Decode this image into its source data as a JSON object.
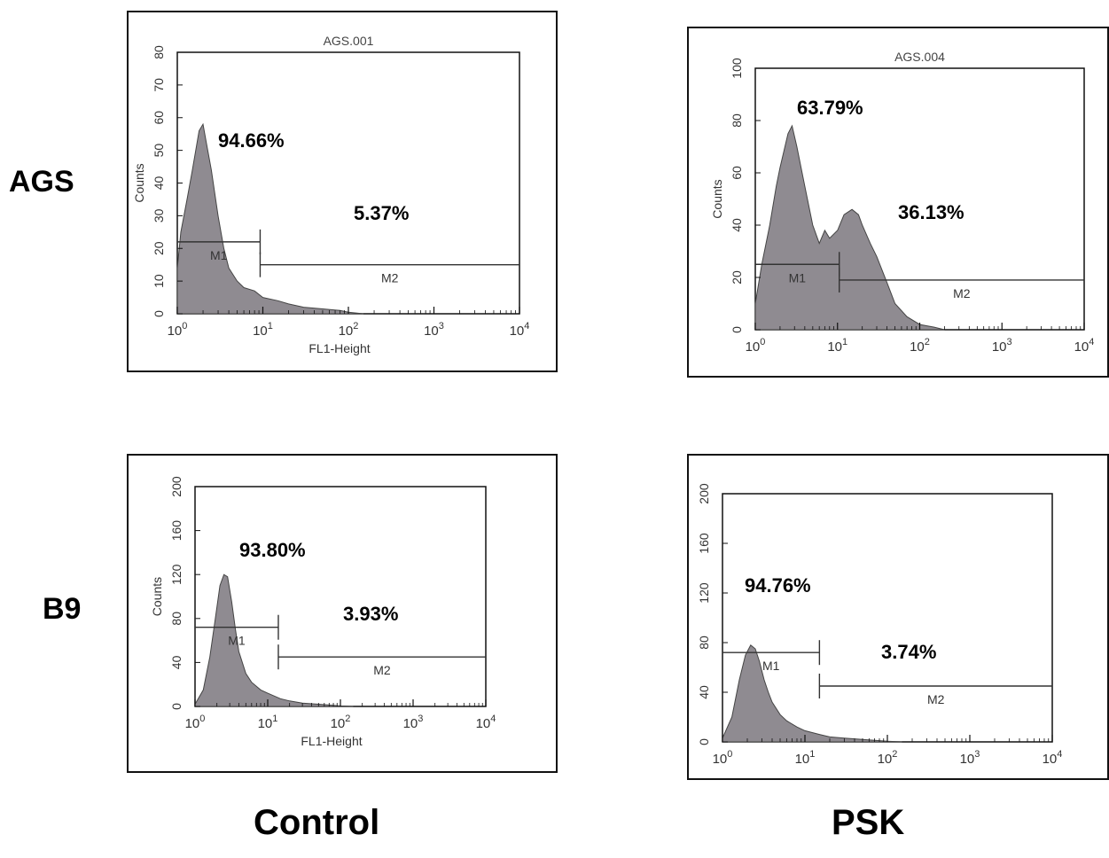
{
  "row_labels": [
    "AGS",
    "B9"
  ],
  "column_labels": [
    "Control",
    "PSK"
  ],
  "colors": {
    "fill": "#8f8b91",
    "line": "#444444",
    "frame": "#111111"
  },
  "chart_data": [
    {
      "type": "area",
      "row": "AGS",
      "column": "Control",
      "title": "AGS.001",
      "xlabel": "FL1-Height",
      "ylabel": "Counts",
      "x_scale": "log",
      "xlim": [
        1,
        10000
      ],
      "ylim": [
        0,
        80
      ],
      "x_ticks": [
        "10^0",
        "10^1",
        "10^2",
        "10^3",
        "10^4"
      ],
      "y_ticks": [
        "0",
        "10",
        "20",
        "30",
        "40",
        "50",
        "60",
        "70",
        "80"
      ],
      "x": [
        1,
        1.1,
        1.3,
        1.5,
        1.8,
        2,
        2.2,
        2.5,
        3,
        3.5,
        4,
        5,
        6,
        8,
        10,
        15,
        20,
        30,
        50,
        80,
        100,
        150
      ],
      "y": [
        14,
        25,
        35,
        44,
        56,
        58,
        52,
        44,
        30,
        20,
        14,
        10,
        8,
        7,
        5,
        4,
        3,
        2,
        1.5,
        1,
        0.5,
        0
      ],
      "markers": [
        {
          "name": "M1",
          "x_range": [
            1,
            9.3
          ],
          "level": 22
        },
        {
          "name": "M2",
          "x_range": [
            9.3,
            10000
          ],
          "level": 15
        }
      ],
      "annotations": [
        "94.66%",
        "5.37%"
      ]
    },
    {
      "type": "area",
      "row": "AGS",
      "column": "PSK",
      "title": "AGS.004",
      "xlabel": "",
      "ylabel": "Counts",
      "x_scale": "log",
      "xlim": [
        1,
        10000
      ],
      "ylim": [
        0,
        100
      ],
      "x_ticks": [
        "10^0",
        "10^1",
        "10^2",
        "10^3",
        "10^4"
      ],
      "y_ticks": [
        "0",
        "20",
        "40",
        "60",
        "80",
        "100"
      ],
      "x": [
        1,
        1.2,
        1.5,
        1.8,
        2,
        2.5,
        2.8,
        3.2,
        4,
        5,
        6,
        7,
        8,
        10,
        12,
        15,
        18,
        20,
        25,
        30,
        40,
        50,
        70,
        100,
        150,
        200
      ],
      "y": [
        10,
        25,
        40,
        55,
        62,
        75,
        78,
        70,
        55,
        40,
        33,
        38,
        35,
        38,
        44,
        46,
        44,
        40,
        33,
        28,
        18,
        10,
        5,
        2,
        1,
        0
      ],
      "markers": [
        {
          "name": "M1",
          "x_range": [
            1,
            10.5
          ],
          "level": 25
        },
        {
          "name": "M2",
          "x_range": [
            10.5,
            10000
          ],
          "level": 19
        }
      ],
      "annotations": [
        "63.79%",
        "36.13%"
      ]
    },
    {
      "type": "area",
      "row": "B9",
      "column": "Control",
      "title": "",
      "xlabel": "FL1-Height",
      "ylabel": "Counts",
      "x_scale": "log",
      "xlim": [
        1,
        10000
      ],
      "ylim": [
        0,
        200
      ],
      "x_ticks": [
        "10^0",
        "10^1",
        "10^2",
        "10^3",
        "10^4"
      ],
      "y_ticks": [
        "0",
        "40",
        "80",
        "120",
        "160",
        "200"
      ],
      "x": [
        1,
        1.3,
        1.6,
        1.9,
        2.2,
        2.5,
        2.8,
        3.2,
        3.6,
        4,
        5,
        6,
        8,
        10,
        15,
        20,
        30,
        50,
        80,
        100,
        150
      ],
      "y": [
        2,
        15,
        45,
        80,
        110,
        120,
        118,
        95,
        70,
        50,
        30,
        22,
        15,
        12,
        7,
        5,
        3,
        2,
        1,
        0.5,
        0
      ],
      "markers": [
        {
          "name": "M1",
          "x_range": [
            1,
            14
          ],
          "level": 72
        },
        {
          "name": "M2",
          "x_range": [
            14,
            10000
          ],
          "level": 45
        }
      ],
      "annotations": [
        "93.80%",
        "3.93%"
      ]
    },
    {
      "type": "area",
      "row": "B9",
      "column": "PSK",
      "title": "",
      "xlabel": "",
      "ylabel": "",
      "x_scale": "log",
      "xlim": [
        1,
        10000
      ],
      "ylim": [
        0,
        200
      ],
      "x_ticks": [
        "10^0",
        "10^1",
        "10^2",
        "10^3",
        "10^4"
      ],
      "y_ticks": [
        "0",
        "40",
        "80",
        "120",
        "160",
        "200"
      ],
      "x": [
        1,
        1.3,
        1.6,
        1.9,
        2.2,
        2.5,
        2.8,
        3.2,
        3.6,
        4,
        5,
        6,
        8,
        10,
        15,
        20,
        30,
        50,
        80,
        100,
        150
      ],
      "y": [
        3,
        20,
        50,
        70,
        78,
        75,
        65,
        50,
        40,
        32,
        22,
        17,
        12,
        9,
        6,
        4,
        3,
        2,
        1,
        0.5,
        0
      ],
      "markers": [
        {
          "name": "M1",
          "x_range": [
            1,
            15
          ],
          "level": 72
        },
        {
          "name": "M2",
          "x_range": [
            15,
            10000
          ],
          "level": 45
        }
      ],
      "annotations": [
        "94.76%",
        "3.74%"
      ]
    }
  ]
}
